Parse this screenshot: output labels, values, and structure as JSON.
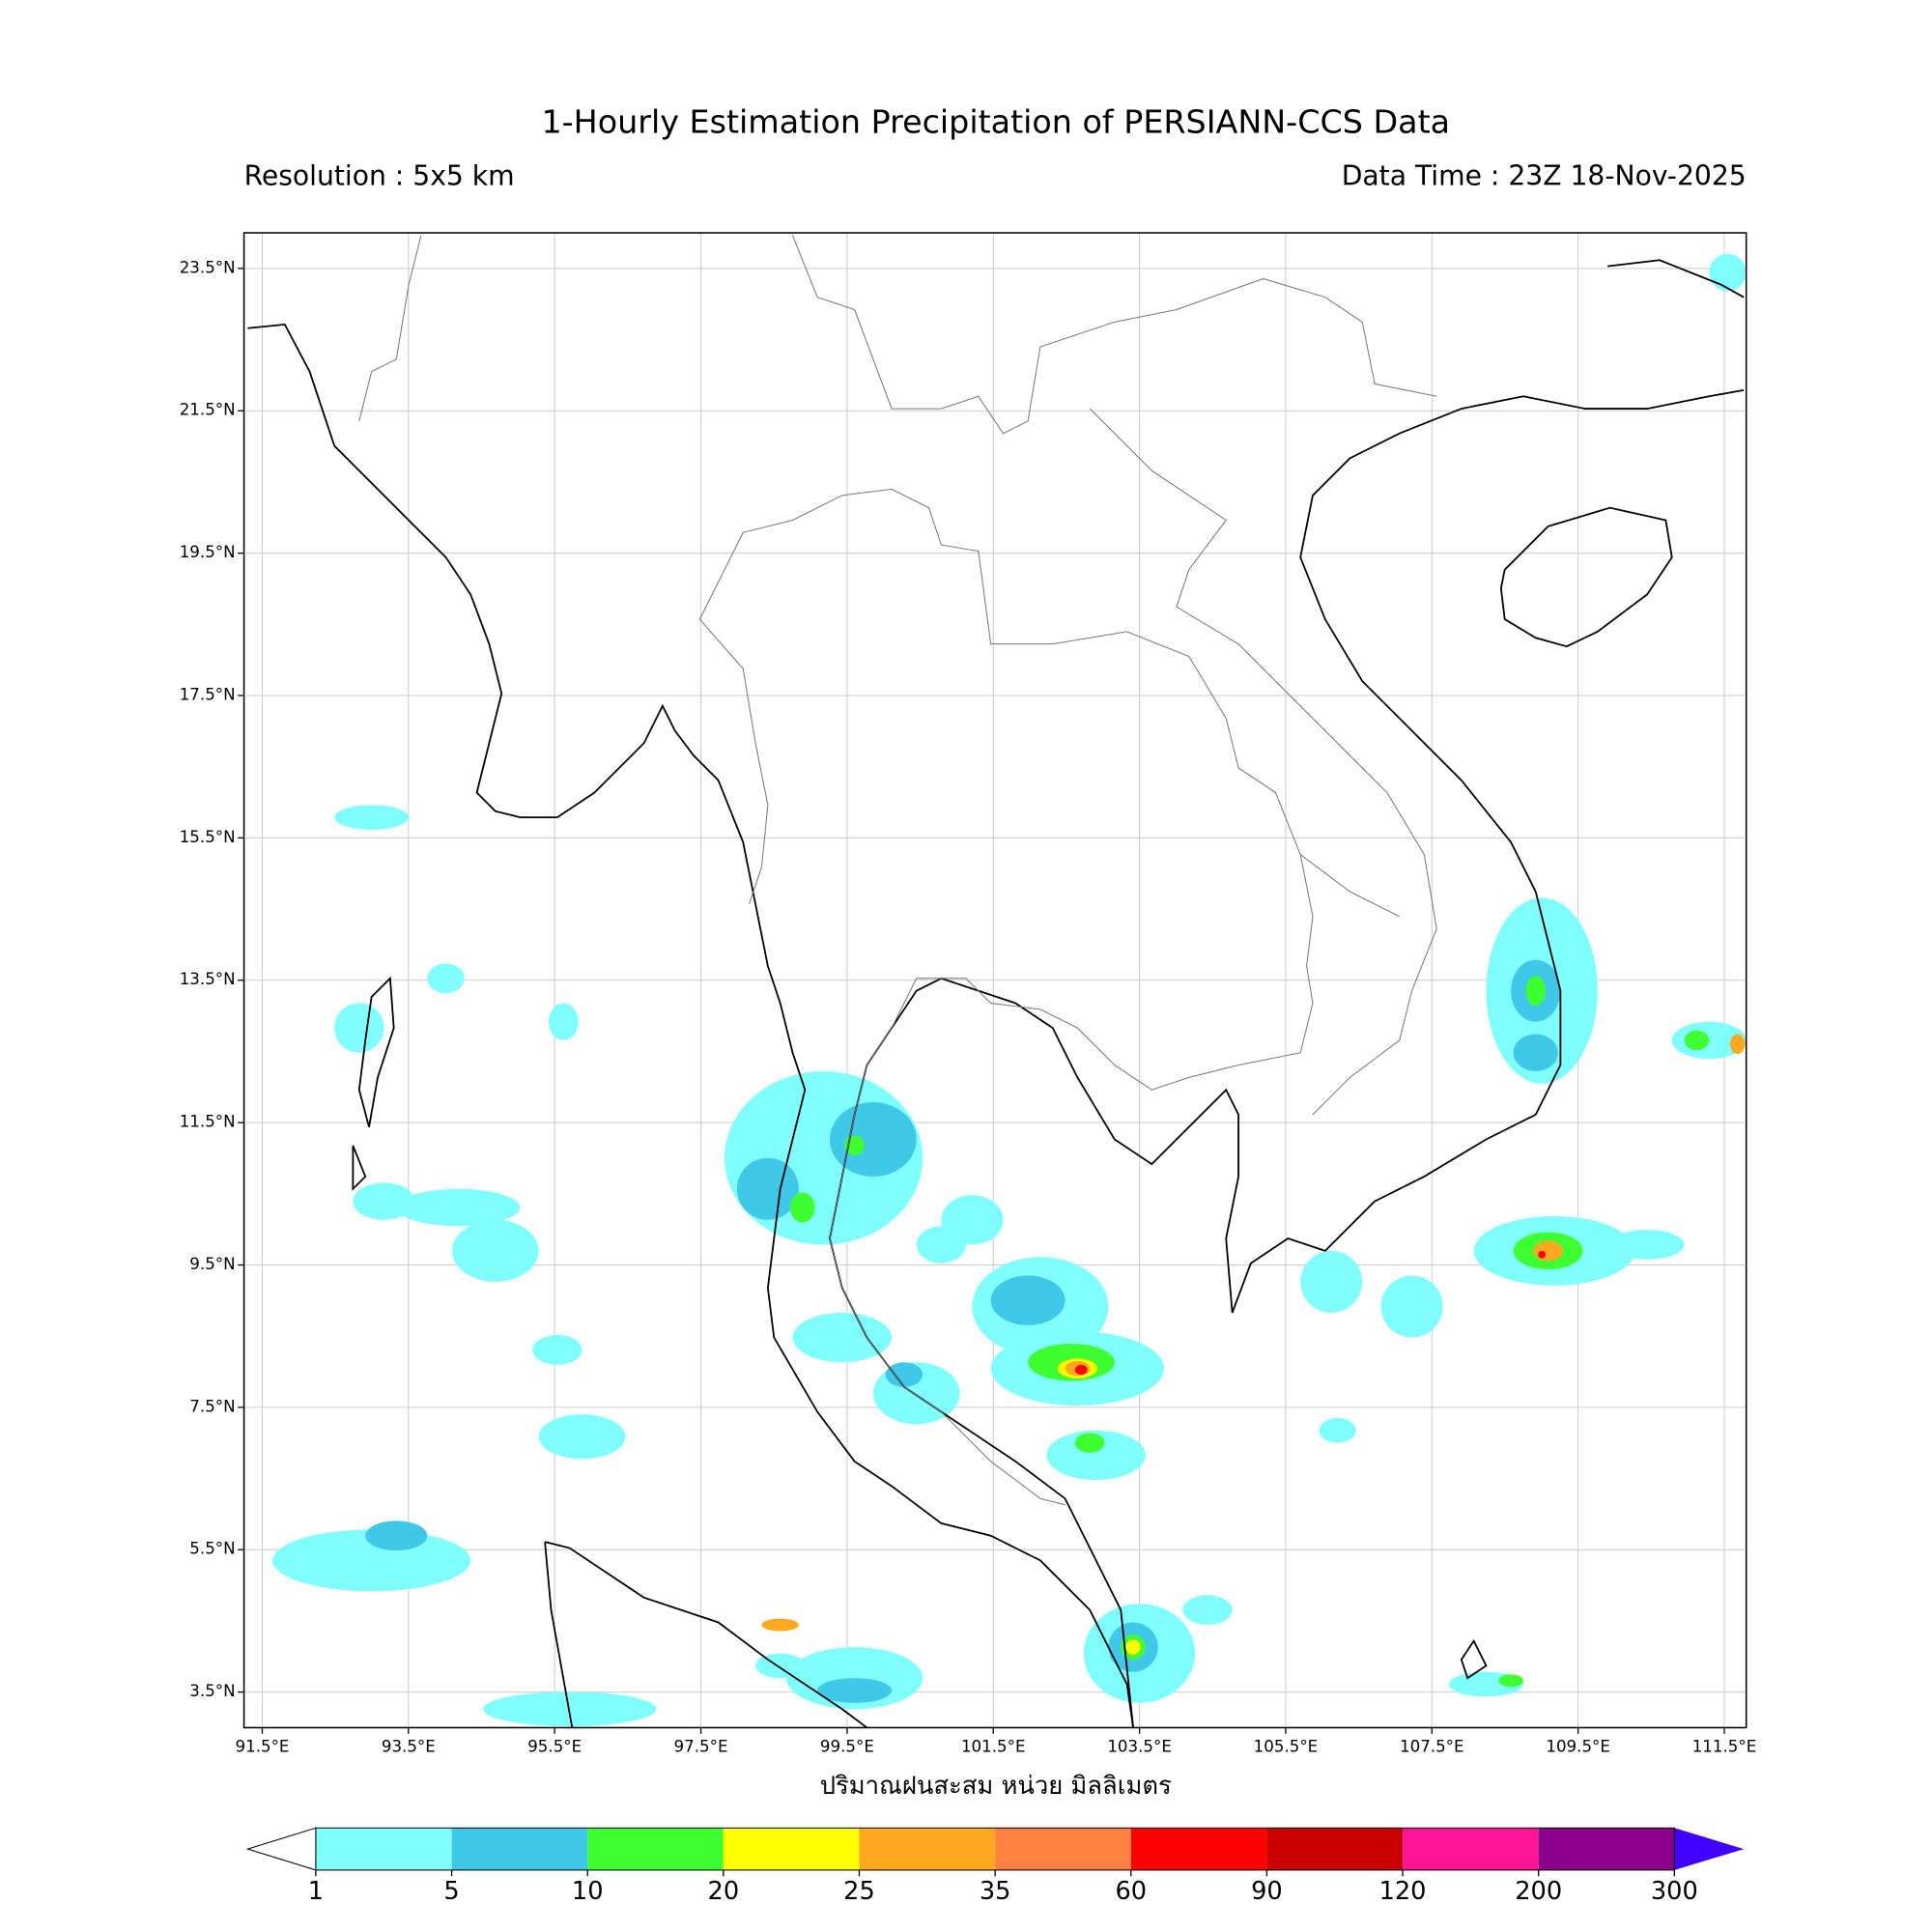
{
  "title": "1-Hourly Estimation Precipitation of PERSIANN-CCS Data",
  "resolution": "Resolution : 5x5 km",
  "data_time": "Data Time : 23Z 18-Nov-2025",
  "map": {
    "xlim": [
      91.25,
      111.8
    ],
    "ylim": [
      3.0,
      24.0
    ],
    "grid": true,
    "xticks": [
      {
        "value": 91.5,
        "label": "91.5°E"
      },
      {
        "value": 93.5,
        "label": "93.5°E"
      },
      {
        "value": 95.5,
        "label": "95.5°E"
      },
      {
        "value": 97.5,
        "label": "97.5°E"
      },
      {
        "value": 99.5,
        "label": "99.5°E"
      },
      {
        "value": 101.5,
        "label": "101.5°E"
      },
      {
        "value": 103.5,
        "label": "103.5°E"
      },
      {
        "value": 105.5,
        "label": "105.5°E"
      },
      {
        "value": 107.5,
        "label": "107.5°E"
      },
      {
        "value": 109.5,
        "label": "109.5°E"
      },
      {
        "value": 111.5,
        "label": "111.5°E"
      }
    ],
    "yticks": [
      {
        "value": 3.5,
        "label": "3.5°N"
      },
      {
        "value": 5.5,
        "label": "5.5°N"
      },
      {
        "value": 7.5,
        "label": "7.5°N"
      },
      {
        "value": 9.5,
        "label": "9.5°N"
      },
      {
        "value": 11.5,
        "label": "11.5°N"
      },
      {
        "value": 13.5,
        "label": "13.5°N"
      },
      {
        "value": 15.5,
        "label": "15.5°N"
      },
      {
        "value": 17.5,
        "label": "17.5°N"
      },
      {
        "value": 19.5,
        "label": "19.5°N"
      },
      {
        "value": 21.5,
        "label": "21.5°N"
      },
      {
        "value": 23.5,
        "label": "23.5°N"
      }
    ]
  },
  "colorbar": {
    "label": "ปริมาณฝนสะสม หน่วย มิลลิเมตร",
    "levels": [
      1,
      5,
      10,
      20,
      25,
      35,
      60,
      90,
      120,
      200,
      300
    ],
    "colors": [
      "#80ffff",
      "#40c8e8",
      "#40ff30",
      "#ffff00",
      "#ffa820",
      "#ff8040",
      "#ff0000",
      "#c80000",
      "#ff1493",
      "#8b008b"
    ],
    "under_color": "#ffffff",
    "over_color": "#4000ff"
  }
}
